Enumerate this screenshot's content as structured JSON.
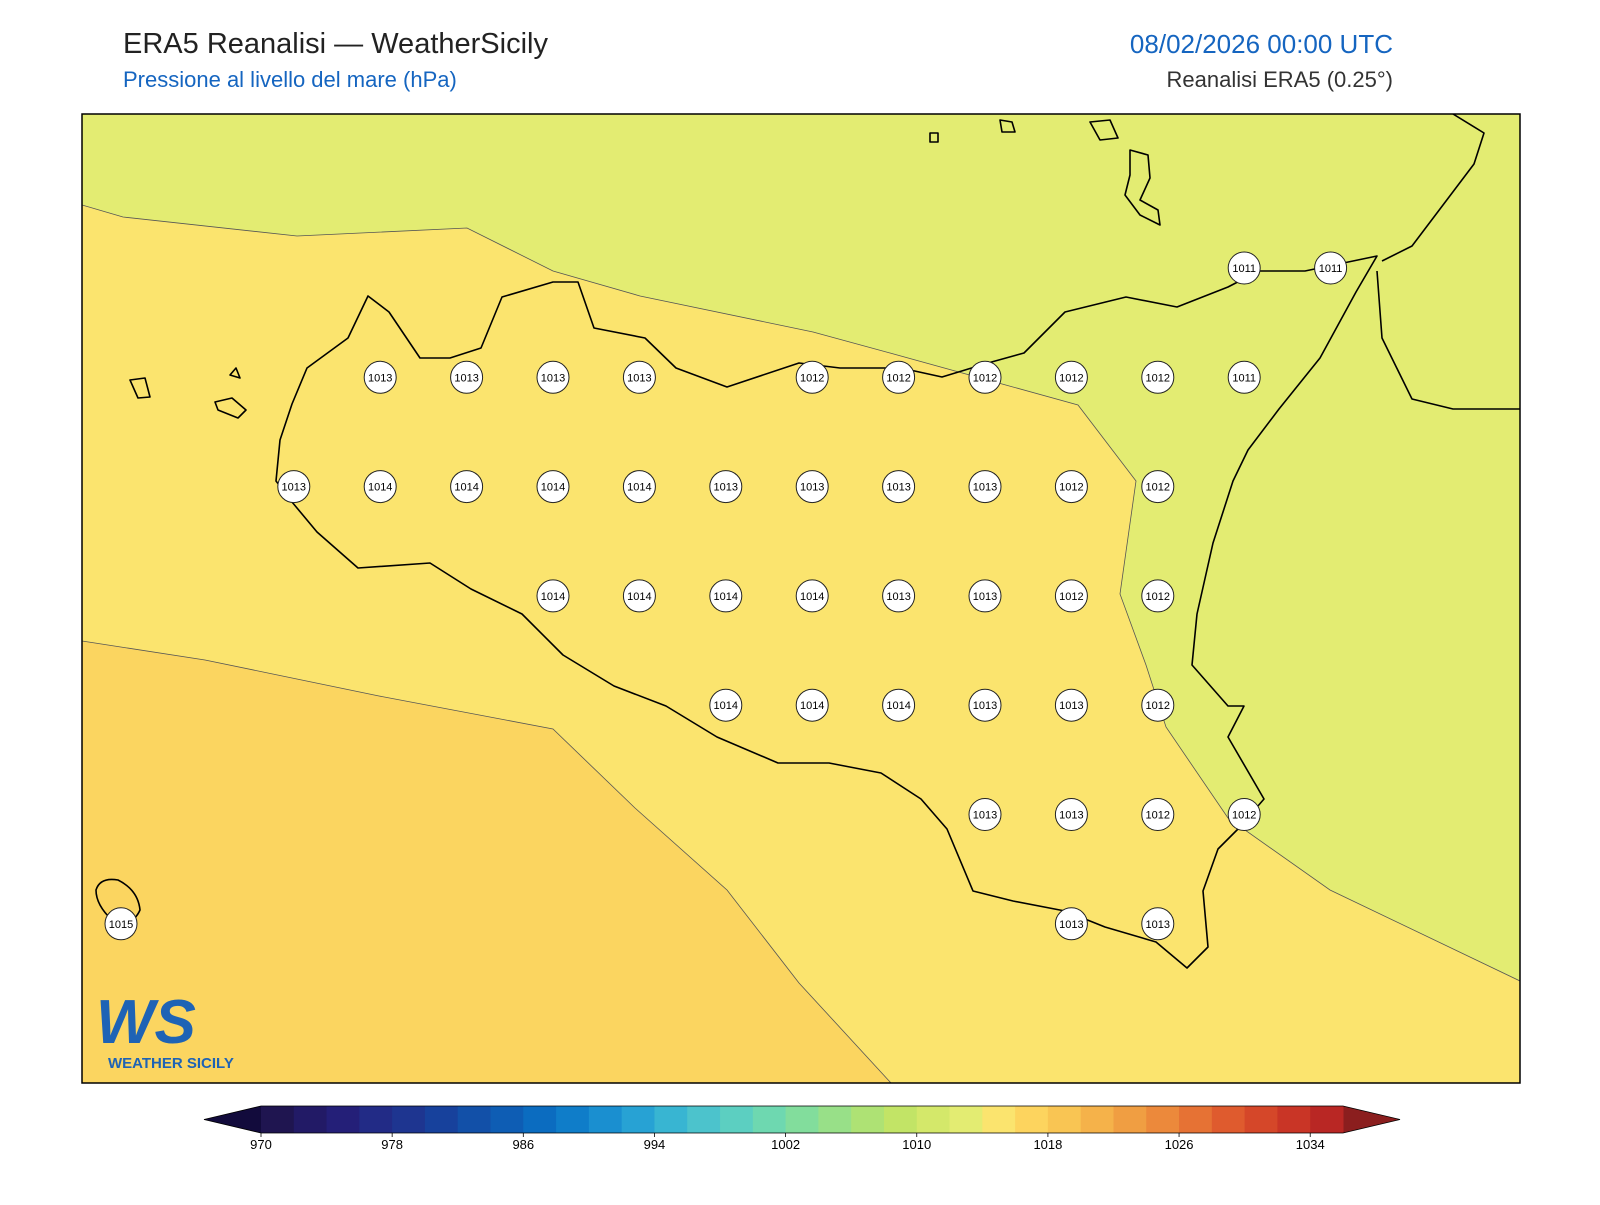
{
  "header": {
    "title": "ERA5 Reanalisi — WeatherSicily",
    "subtitle": "Pressione al livello del mare (hPa)",
    "datetime": "08/02/2026 00:00 UTC",
    "source": "Reanalisi ERA5 (0.25°)"
  },
  "stations": [
    [
      null,
      null,
      null,
      null,
      null,
      null,
      null,
      null,
      null,
      null,
      null,
      null,
      null,
      1011,
      1011
    ],
    [
      null,
      null,
      null,
      1013,
      1013,
      1013,
      1013,
      null,
      1012,
      1012,
      1012,
      1012,
      1012,
      1011,
      null
    ],
    [
      null,
      null,
      1013,
      1014,
      1014,
      1014,
      1014,
      1013,
      1013,
      1013,
      1013,
      1012,
      1012,
      null,
      null
    ],
    [
      null,
      null,
      null,
      null,
      null,
      1014,
      1014,
      1014,
      1014,
      1013,
      1013,
      1012,
      1012,
      null,
      null
    ],
    [
      null,
      null,
      null,
      null,
      null,
      null,
      null,
      1014,
      1014,
      1014,
      1013,
      1013,
      1012,
      null,
      null
    ],
    [
      null,
      null,
      null,
      null,
      null,
      null,
      null,
      null,
      null,
      null,
      1013,
      1013,
      1012,
      1012,
      null
    ],
    [
      1015,
      null,
      null,
      null,
      null,
      null,
      null,
      null,
      null,
      null,
      null,
      1013,
      1013,
      null,
      null
    ]
  ],
  "colorbar": {
    "lim": [
      970,
      1036
    ],
    "ticks": [
      970,
      978,
      986,
      994,
      1002,
      1010,
      1018,
      1026,
      1034
    ],
    "under": "#120b3c",
    "over": "#8b1e1e",
    "colors": [
      "#1f1550",
      "#221a66",
      "#241f78",
      "#222b86",
      "#1e3590",
      "#17419c",
      "#1250a8",
      "#0e5db4",
      "#0b6cc0",
      "#0f7dc9",
      "#1a8fd0",
      "#27a2d4",
      "#38b5d2",
      "#4cc3cc",
      "#5ccfc1",
      "#6ed8b0",
      "#82dd9c",
      "#98e088",
      "#aee274",
      "#c2e466",
      "#d4e86a",
      "#e3ec72",
      "#fbe46e",
      "#fdd45e",
      "#f9c553",
      "#f5b24a",
      "#f09e42",
      "#ec893b",
      "#e67234",
      "#df5b2e",
      "#d54729",
      "#c93526",
      "#b92724"
    ]
  },
  "logo": {
    "mark": "WS",
    "name": "WEATHER SICILY"
  }
}
